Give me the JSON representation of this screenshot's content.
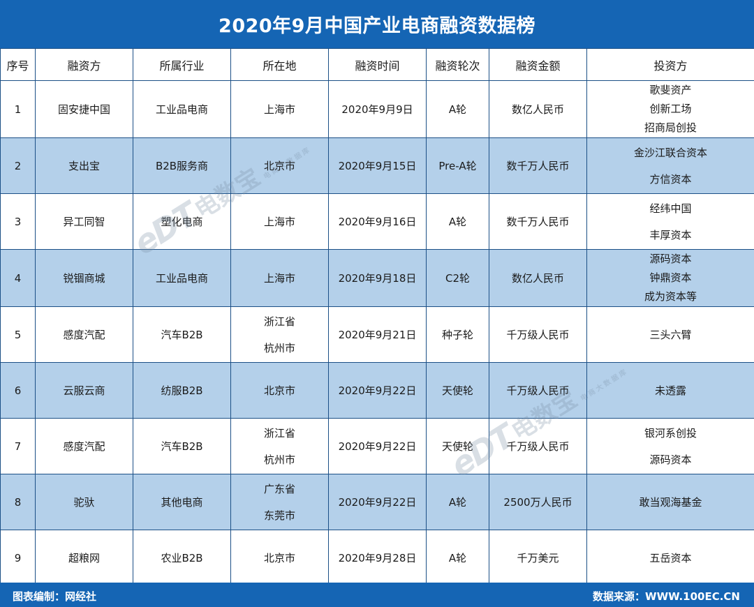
{
  "title": "2020年9月中国产业电商融资数据榜",
  "columns": [
    "序号",
    "融资方",
    "所属行业",
    "所在地",
    "融资时间",
    "融资轮次",
    "融资金额",
    "投资方"
  ],
  "rows": [
    {
      "no": "1",
      "company": "固安捷中国",
      "industry": "工业品电商",
      "location": [
        "上海市"
      ],
      "date": "2020年9月9日",
      "round": "A轮",
      "amount": "数亿人民币",
      "investors": [
        "歌斐资产",
        "创新工场",
        "招商局创投"
      ]
    },
    {
      "no": "2",
      "company": "支出宝",
      "industry": "B2B服务商",
      "location": [
        "北京市"
      ],
      "date": "2020年9月15日",
      "round": "Pre-A轮",
      "amount": "数千万人民币",
      "investors": [
        "金沙江联合资本",
        "方信资本"
      ]
    },
    {
      "no": "3",
      "company": "异工同智",
      "industry": "塑化电商",
      "location": [
        "上海市"
      ],
      "date": "2020年9月16日",
      "round": "A轮",
      "amount": "数千万人民币",
      "investors": [
        "经纬中国",
        "丰厚资本"
      ]
    },
    {
      "no": "4",
      "company": "锐锢商城",
      "industry": "工业品电商",
      "location": [
        "上海市"
      ],
      "date": "2020年9月18日",
      "round": "C2轮",
      "amount": "数亿人民币",
      "investors": [
        "源码资本",
        "钟鼎资本",
        "成为资本等"
      ]
    },
    {
      "no": "5",
      "company": "感度汽配",
      "industry": "汽车B2B",
      "location": [
        "浙江省",
        "杭州市"
      ],
      "date": "2020年9月21日",
      "round": "种子轮",
      "amount": "千万级人民币",
      "investors": [
        "三头六臂"
      ]
    },
    {
      "no": "6",
      "company": "云服云商",
      "industry": "纺服B2B",
      "location": [
        "北京市"
      ],
      "date": "2020年9月22日",
      "round": "天使轮",
      "amount": "千万级人民币",
      "investors": [
        "未透露"
      ]
    },
    {
      "no": "7",
      "company": "感度汽配",
      "industry": "汽车B2B",
      "location": [
        "浙江省",
        "杭州市"
      ],
      "date": "2020年9月22日",
      "round": "天使轮",
      "amount": "千万级人民币",
      "investors": [
        "银河系创投",
        "源码资本"
      ]
    },
    {
      "no": "8",
      "company": "驼驮",
      "industry": "其他电商",
      "location": [
        "广东省",
        "东莞市"
      ],
      "date": "2020年9月22日",
      "round": "A轮",
      "amount": "2500万人民币",
      "investors": [
        "敢当观海基金"
      ]
    },
    {
      "no": "9",
      "company": "超粮网",
      "industry": "农业B2B",
      "location": [
        "北京市"
      ],
      "date": "2020年9月28日",
      "round": "A轮",
      "amount": "千万美元",
      "investors": [
        "五岳资本"
      ]
    }
  ],
  "footer": {
    "left": "图表编制：网经社",
    "right": "数据来源：WWW.100EC.CN"
  },
  "watermark": {
    "logo": "eDT",
    "name": "电数宝",
    "sub": "电商大数据库"
  },
  "colors": {
    "header_bar": "#1565b4",
    "alt_row": "#b4d0ea",
    "border": "#1b4f86"
  }
}
